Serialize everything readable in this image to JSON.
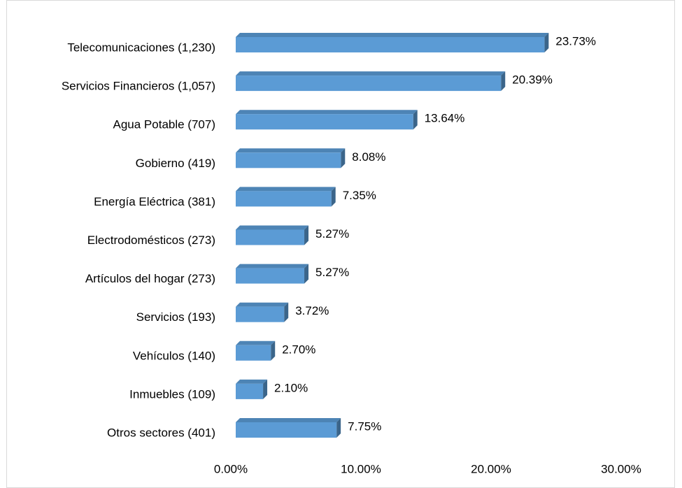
{
  "chart_data": {
    "type": "bar",
    "orientation": "horizontal",
    "categories": [
      "Telecomunicaciones (1,230)",
      "Servicios Financieros (1,057)",
      "Agua Potable (707)",
      "Gobierno (419)",
      "Energía Eléctrica (381)",
      "Electrodomésticos (273)",
      "Artículos del hogar (273)",
      "Servicios (193)",
      "Vehículos (140)",
      "Inmuebles (109)",
      "Otros sectores (401)"
    ],
    "values": [
      23.73,
      20.39,
      13.64,
      8.08,
      7.35,
      5.27,
      5.27,
      3.72,
      2.7,
      2.1,
      7.75
    ],
    "value_labels": [
      "23.73%",
      "20.39%",
      "13.64%",
      "8.08%",
      "7.35%",
      "5.27%",
      "5.27%",
      "3.72%",
      "2.70%",
      "2.10%",
      "7.75%"
    ],
    "color": "#5b9bd5",
    "xlim": [
      0,
      30
    ],
    "xticks": [
      {
        "value": 0,
        "label": "0.00%"
      },
      {
        "value": 10,
        "label": "10.00%"
      },
      {
        "value": 20,
        "label": "20.00%"
      },
      {
        "value": 30,
        "label": "30.00%"
      }
    ],
    "grid": false
  }
}
